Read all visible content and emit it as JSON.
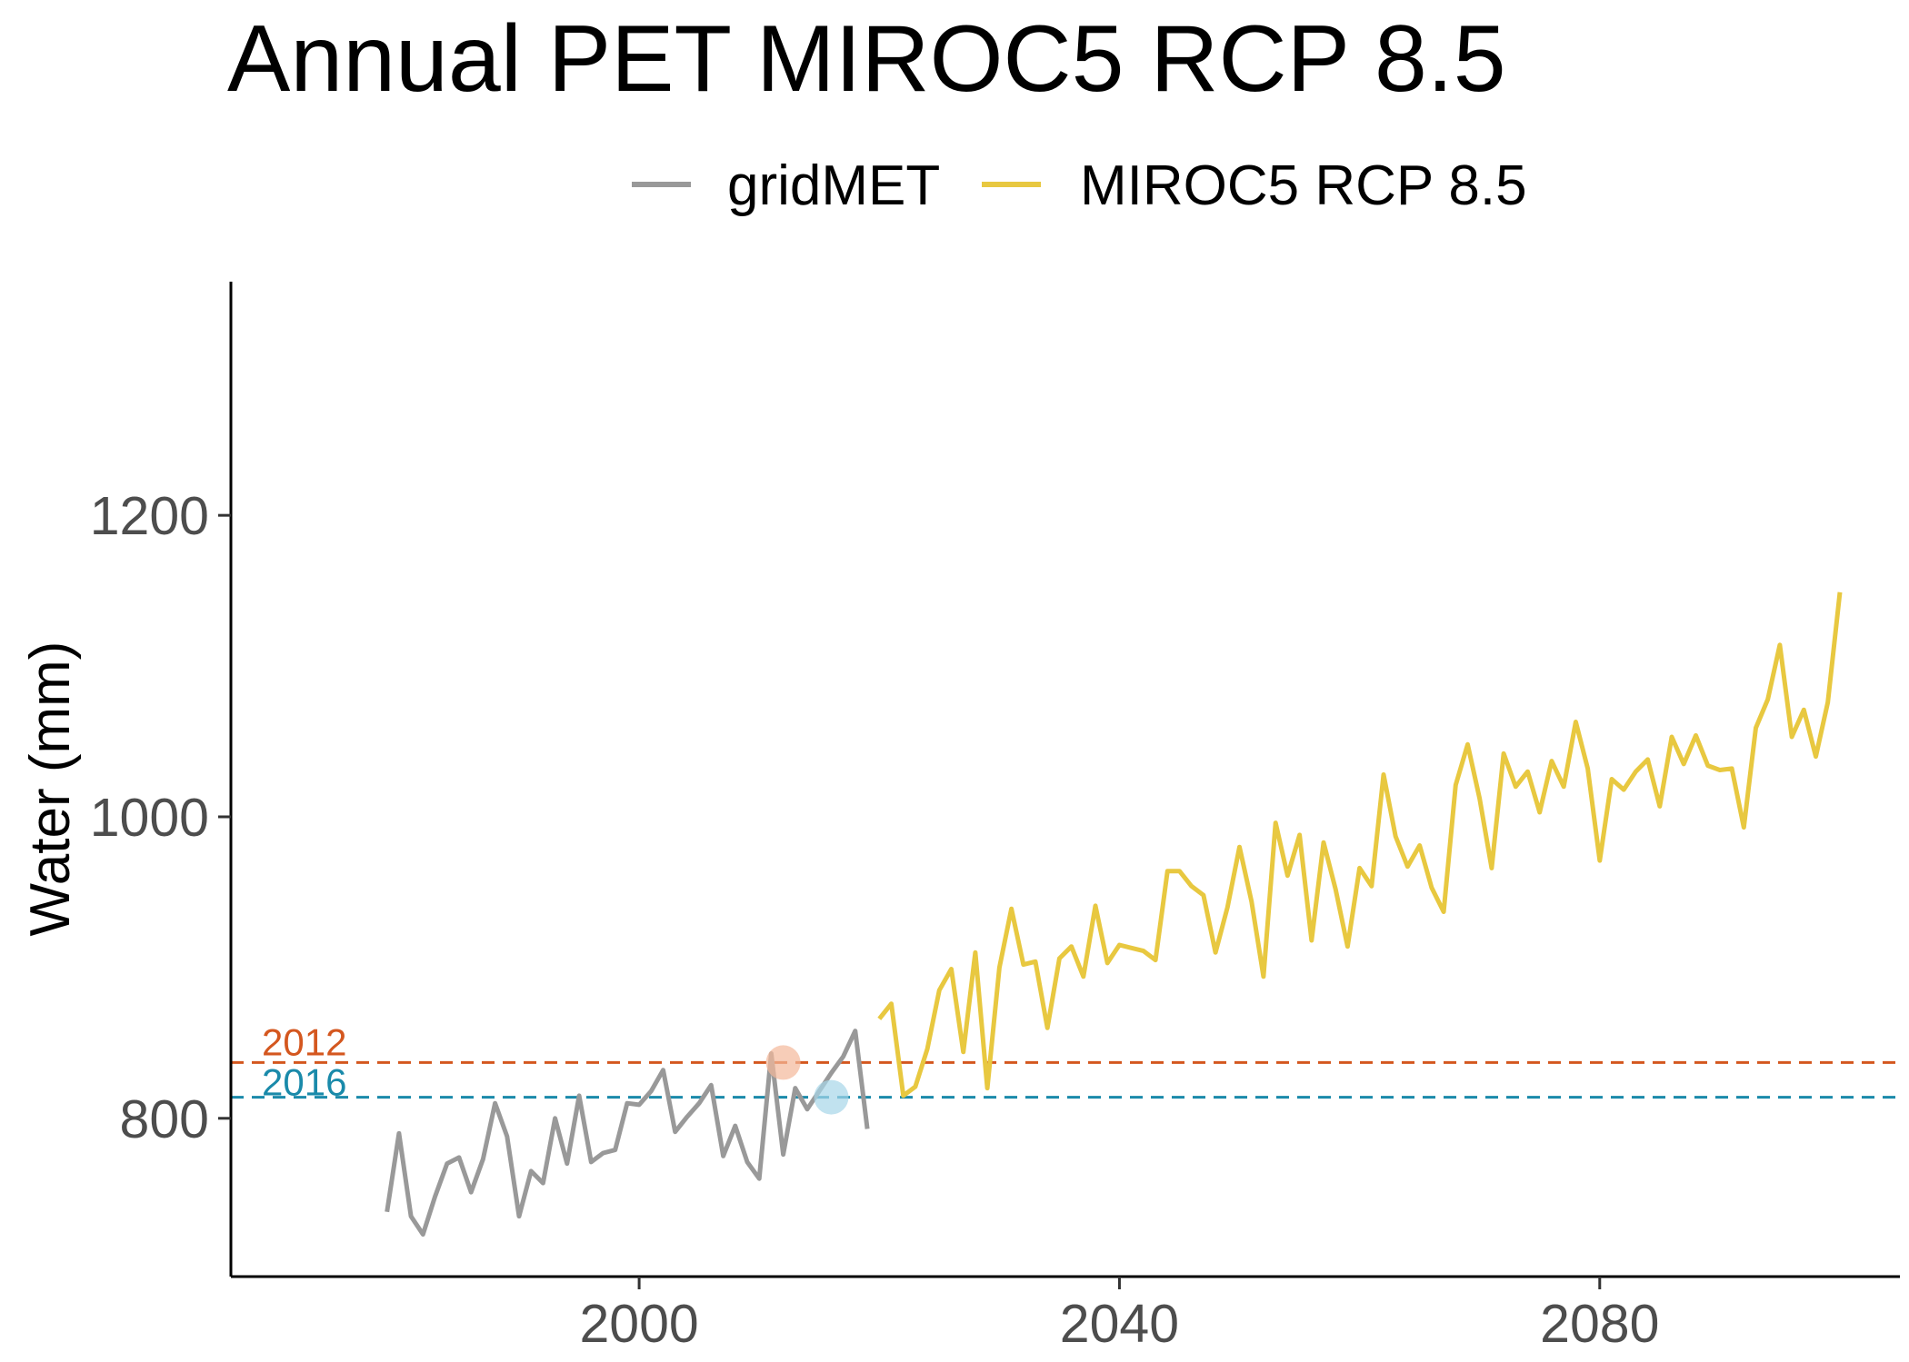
{
  "chart_data": {
    "type": "line",
    "title": "Annual PET MIROC5 RCP 8.5",
    "xlabel": "",
    "ylabel": "Water (mm)",
    "xlim": [
      1966,
      2105
    ],
    "ylim": [
      695,
      1355
    ],
    "x_ticks": [
      2000,
      2040,
      2080
    ],
    "y_ticks": [
      800,
      1000,
      1200
    ],
    "grid": false,
    "legend_position": "top",
    "series": [
      {
        "name": "gridMET",
        "color": "#999999",
        "x": [
          1979,
          1980,
          1981,
          1982,
          1983,
          1984,
          1985,
          1986,
          1987,
          1988,
          1989,
          1990,
          1991,
          1992,
          1993,
          1994,
          1995,
          1996,
          1997,
          1998,
          1999,
          2000,
          2001,
          2002,
          2003,
          2004,
          2005,
          2006,
          2007,
          2008,
          2009,
          2010,
          2011,
          2012,
          2013,
          2014,
          2015,
          2016,
          2017,
          2018,
          2019
        ],
        "values": [
          738,
          790,
          735,
          723,
          748,
          770,
          774,
          751,
          773,
          810,
          788,
          735,
          765,
          757,
          800,
          770,
          815,
          771,
          777,
          779,
          810,
          809,
          818,
          832,
          791,
          801,
          810,
          822,
          775,
          795,
          771,
          760,
          843,
          776,
          820,
          806,
          818,
          830,
          841,
          858,
          793
        ]
      },
      {
        "name": "MIROC5 RCP 8.5",
        "color": "#e8c840",
        "x": [
          2020,
          2021,
          2022,
          2023,
          2024,
          2025,
          2026,
          2027,
          2028,
          2029,
          2030,
          2031,
          2032,
          2033,
          2034,
          2035,
          2036,
          2037,
          2038,
          2039,
          2040,
          2041,
          2042,
          2043,
          2044,
          2045,
          2046,
          2047,
          2048,
          2049,
          2050,
          2051,
          2052,
          2053,
          2054,
          2055,
          2056,
          2057,
          2058,
          2059,
          2060,
          2061,
          2062,
          2063,
          2064,
          2065,
          2066,
          2067,
          2068,
          2069,
          2070,
          2071,
          2072,
          2073,
          2074,
          2075,
          2076,
          2077,
          2078,
          2079,
          2080,
          2081,
          2082,
          2083,
          2084,
          2085,
          2086,
          2087,
          2088,
          2089,
          2090,
          2091,
          2092,
          2093,
          2094,
          2095,
          2096,
          2097,
          2098,
          2099,
          2100
        ],
        "values": [
          866,
          876,
          815,
          821,
          846,
          885,
          899,
          844,
          910,
          820,
          900,
          939,
          902,
          904,
          860,
          906,
          914,
          894,
          941,
          903,
          915,
          913,
          911,
          905,
          964,
          964,
          954,
          948,
          910,
          940,
          980,
          944,
          894,
          996,
          961,
          988,
          918,
          983,
          952,
          914,
          966,
          954,
          1028,
          987,
          967,
          981,
          953,
          937,
          1021,
          1048,
          1012,
          966,
          1042,
          1020,
          1030,
          1003,
          1037,
          1020,
          1063,
          1032,
          971,
          1025,
          1018,
          1030,
          1038,
          1007,
          1053,
          1035,
          1054,
          1034,
          1031,
          1032,
          993,
          1059,
          1078,
          1114,
          1053,
          1071,
          1040,
          1076,
          1149
        ]
      }
    ],
    "reference_lines": [
      {
        "label": "2012",
        "value": 837,
        "color": "#d4571f"
      },
      {
        "label": "2016",
        "value": 814,
        "color": "#1a8aaa"
      }
    ],
    "highlight_points": [
      {
        "x": 2012,
        "y": 837,
        "color": "#f4b89a"
      },
      {
        "x": 2016,
        "y": 814,
        "color": "#a6d5e8"
      }
    ]
  }
}
